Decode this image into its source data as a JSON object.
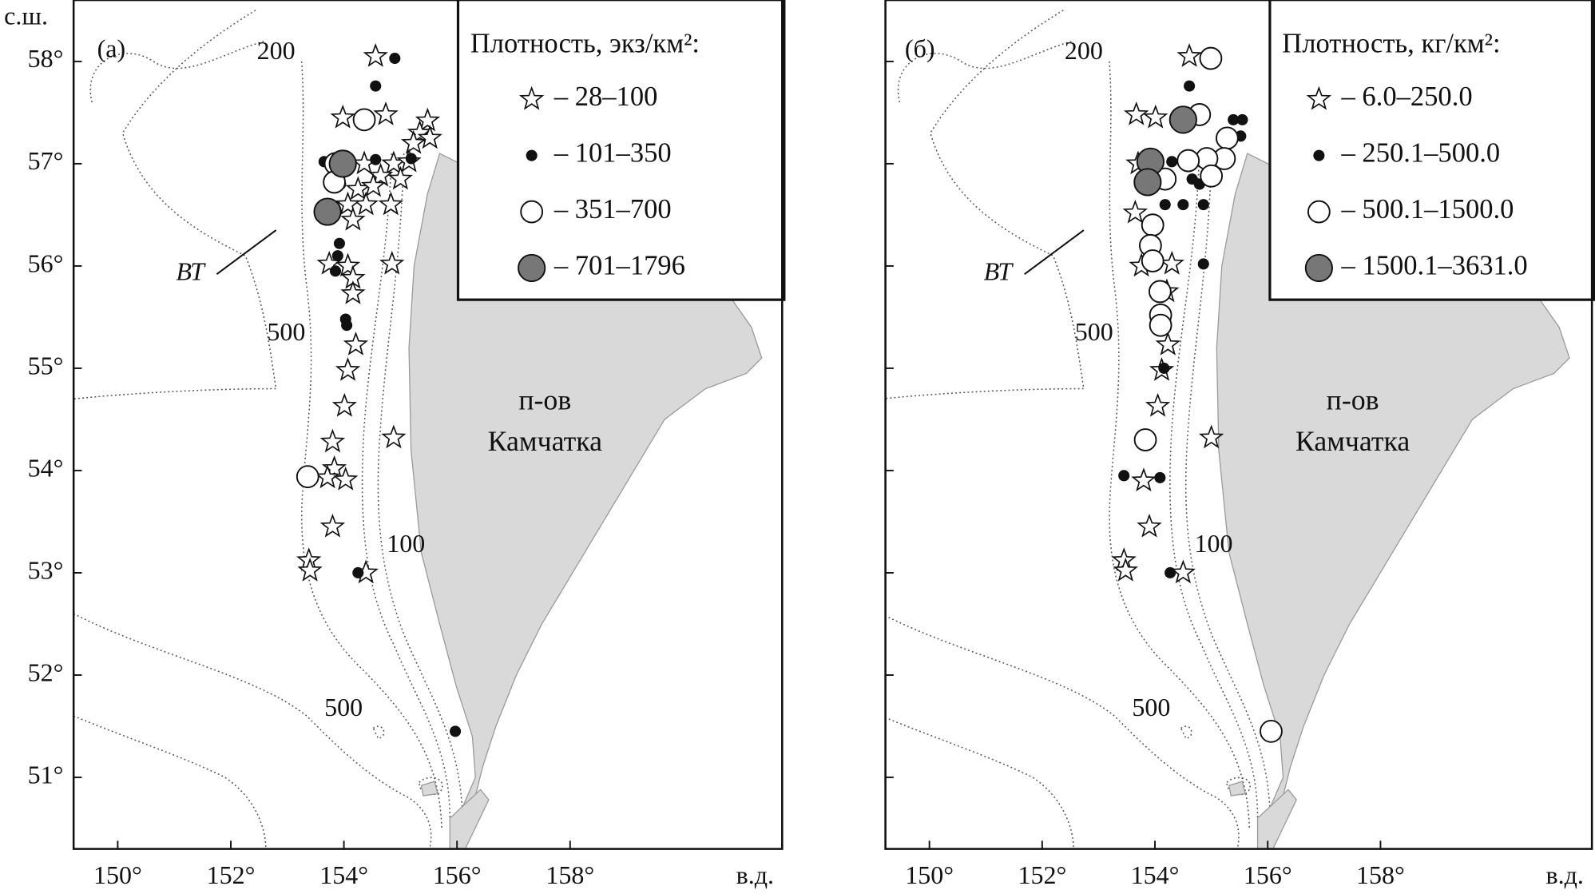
{
  "map": {
    "ylabel": "с.ш.",
    "xlabel": "в.д.",
    "xlim": [
      149.22,
      161.75
    ],
    "ylim": [
      50.3,
      58.6
    ],
    "xticks": [
      {
        "value": 150,
        "label": "150°"
      },
      {
        "value": 152,
        "label": "152°"
      },
      {
        "value": 154,
        "label": "154°"
      },
      {
        "value": 156,
        "label": "156°"
      },
      {
        "value": 158,
        "label": "158°"
      }
    ],
    "yticks": [
      {
        "value": 51,
        "label": "51°"
      },
      {
        "value": 52,
        "label": "52°"
      },
      {
        "value": 53,
        "label": "53°"
      },
      {
        "value": 54,
        "label": "54°"
      },
      {
        "value": 55,
        "label": "55°"
      },
      {
        "value": 56,
        "label": "56°"
      },
      {
        "value": 57,
        "label": "57°"
      },
      {
        "value": 58,
        "label": "58°"
      }
    ],
    "isobath_labels": [
      "200",
      "500",
      "500",
      "100"
    ],
    "trench_label": "ВТ",
    "land_label": [
      "п-ов",
      "Камчатка"
    ],
    "panels": [
      {
        "label": "(а)",
        "legend_title": "Плотность, экз/км²:",
        "series": [
          {
            "name": "– 28–100",
            "symbol": "star",
            "lon": [
              154.56,
              153.98,
              154.74,
              155.48,
              155.34,
              155.52,
              155.23,
              154.36,
              154.88,
              154.65,
              155.0,
              155.15,
              154.25,
              154.52,
              154.39,
              154.83,
              154.07,
              154.16,
              154.85,
              153.74,
              154.07,
              154.16,
              154.16,
              154.21,
              154.07,
              154.01,
              153.8,
              154.88,
              153.83,
              153.71,
              154.03,
              153.8,
              153.38,
              153.4,
              154.39
            ],
            "lat": [
              58.05,
              57.45,
              57.48,
              57.42,
              57.3,
              57.25,
              57.2,
              57.0,
              57.0,
              56.88,
              56.85,
              57.02,
              56.75,
              56.78,
              56.6,
              56.6,
              56.6,
              56.45,
              56.02,
              56.02,
              56.0,
              55.88,
              55.73,
              55.23,
              54.98,
              54.63,
              54.28,
              54.32,
              54.02,
              53.93,
              53.91,
              53.45,
              53.12,
              53.02,
              53.0
            ]
          },
          {
            "name": "– 101–350",
            "symbol": "dot",
            "lon": [
              154.9,
              154.56,
              153.65,
              154.56,
              155.19,
              153.92,
              153.89,
              153.85,
              154.03,
              154.05,
              154.25,
              155.97,
              153.94
            ],
            "lat": [
              58.03,
              57.76,
              57.02,
              57.04,
              57.05,
              56.22,
              56.1,
              55.95,
              55.48,
              55.42,
              53.0,
              51.45,
              56.8
            ]
          },
          {
            "name": "– 351–700",
            "symbol": "open",
            "lon": [
              154.36,
              153.85,
              153.83,
              153.36
            ],
            "lat": [
              57.43,
              57.0,
              56.82,
              53.94
            ]
          },
          {
            "name": "– 701–1796",
            "symbol": "gray",
            "lon": [
              153.98,
              153.71
            ],
            "lat": [
              57.0,
              56.53
            ]
          }
        ]
      },
      {
        "label": "(б)",
        "legend_title": "Плотность, кг/км²:",
        "series": [
          {
            "name": "– 6.0–250.0",
            "symbol": "star",
            "lon": [
              154.61,
              153.67,
              154.01,
              153.7,
              153.65,
              154.3,
              153.76,
              154.21,
              154.23,
              154.12,
              154.05,
              155.0,
              153.8,
              153.9,
              153.45,
              153.48,
              154.5
            ],
            "lat": [
              58.05,
              57.48,
              57.45,
              57.0,
              56.52,
              56.02,
              56.0,
              55.75,
              55.23,
              54.98,
              54.63,
              54.32,
              53.9,
              53.45,
              53.12,
              53.02,
              53.0
            ]
          },
          {
            "name": "– 250.1–500.0",
            "symbol": "dot",
            "lon": [
              154.61,
              154.3,
              154.66,
              154.79,
              154.5,
              154.86,
              155.39,
              155.55,
              155.52,
              154.18,
              154.86,
              154.16,
              153.45,
              154.09,
              154.27
            ],
            "lat": [
              57.76,
              57.02,
              56.85,
              56.8,
              56.6,
              56.6,
              57.43,
              57.43,
              57.27,
              56.6,
              56.02,
              55.0,
              53.95,
              53.93,
              53.0
            ]
          },
          {
            "name": "– 500.1–1500.0",
            "symbol": "open",
            "lon": [
              154.99,
              154.79,
              155.28,
              155.23,
              154.92,
              154.59,
              155.0,
              154.18,
              153.96,
              153.92,
              153.96,
              154.09,
              154.1,
              154.1,
              153.83,
              156.06
            ],
            "lat": [
              58.03,
              57.48,
              57.25,
              57.05,
              57.05,
              57.03,
              56.88,
              56.85,
              56.4,
              56.2,
              56.05,
              55.75,
              55.52,
              55.42,
              54.3,
              51.45
            ]
          },
          {
            "name": "– 1500.1–3631.0",
            "symbol": "gray",
            "lon": [
              154.5,
              153.92,
              153.87
            ],
            "lat": [
              57.43,
              57.02,
              56.82
            ]
          }
        ]
      }
    ]
  }
}
